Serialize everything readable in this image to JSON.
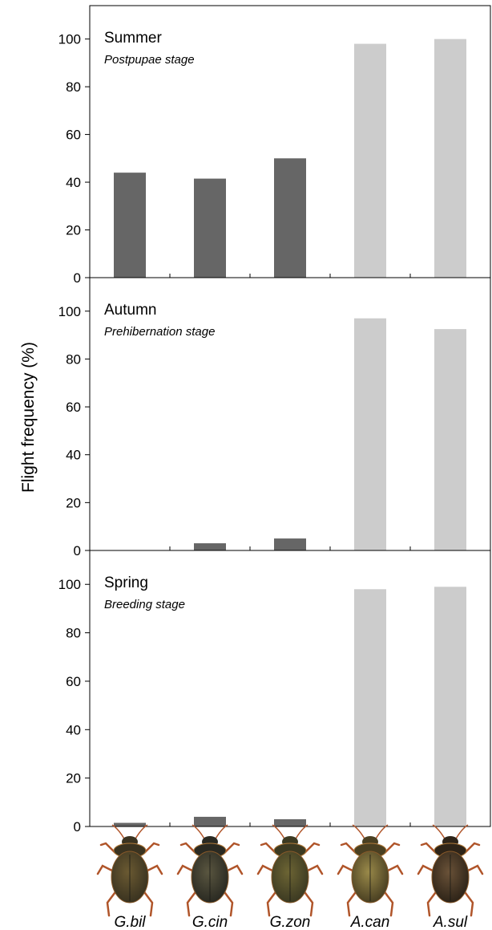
{
  "chart_data": [
    {
      "type": "bar",
      "title": "Summer",
      "subtitle": "Postpupae stage",
      "ylabel": "Flight frequency (%)",
      "ylim": [
        0,
        114
      ],
      "yticks": [
        0,
        20,
        40,
        60,
        80,
        100
      ],
      "categories": [
        "G.bil",
        "G.cin",
        "G.zon",
        "A.can",
        "A.sul"
      ],
      "values": [
        44,
        41.5,
        50,
        98,
        100
      ],
      "colors": [
        "#666666",
        "#666666",
        "#666666",
        "#cccccc",
        "#cccccc"
      ]
    },
    {
      "type": "bar",
      "title": "Autumn",
      "subtitle": "Prehibernation stage",
      "ylabel": "Flight frequency (%)",
      "ylim": [
        0,
        114
      ],
      "yticks": [
        0,
        20,
        40,
        60,
        80,
        100
      ],
      "categories": [
        "G.bil",
        "G.cin",
        "G.zon",
        "A.can",
        "A.sul"
      ],
      "values": [
        0,
        3,
        5,
        97,
        92.5
      ],
      "colors": [
        "#666666",
        "#666666",
        "#666666",
        "#cccccc",
        "#cccccc"
      ]
    },
    {
      "type": "bar",
      "title": "Spring",
      "subtitle": "Breeding stage",
      "ylabel": "Flight frequency (%)",
      "ylim": [
        0,
        114
      ],
      "yticks": [
        0,
        20,
        40,
        60,
        80,
        100
      ],
      "categories": [
        "G.bil",
        "G.cin",
        "G.zon",
        "A.can",
        "A.sul"
      ],
      "values": [
        1.5,
        4,
        3,
        98,
        99
      ],
      "colors": [
        "#666666",
        "#666666",
        "#666666",
        "#cccccc",
        "#cccccc"
      ]
    }
  ],
  "species": [
    {
      "label": "G.bil",
      "icon": "beetle-icon"
    },
    {
      "label": "G.cin",
      "icon": "beetle-icon"
    },
    {
      "label": "G.zon",
      "icon": "beetle-icon"
    },
    {
      "label": "A.can",
      "icon": "beetle-icon"
    },
    {
      "label": "A.sul",
      "icon": "beetle-icon"
    }
  ]
}
